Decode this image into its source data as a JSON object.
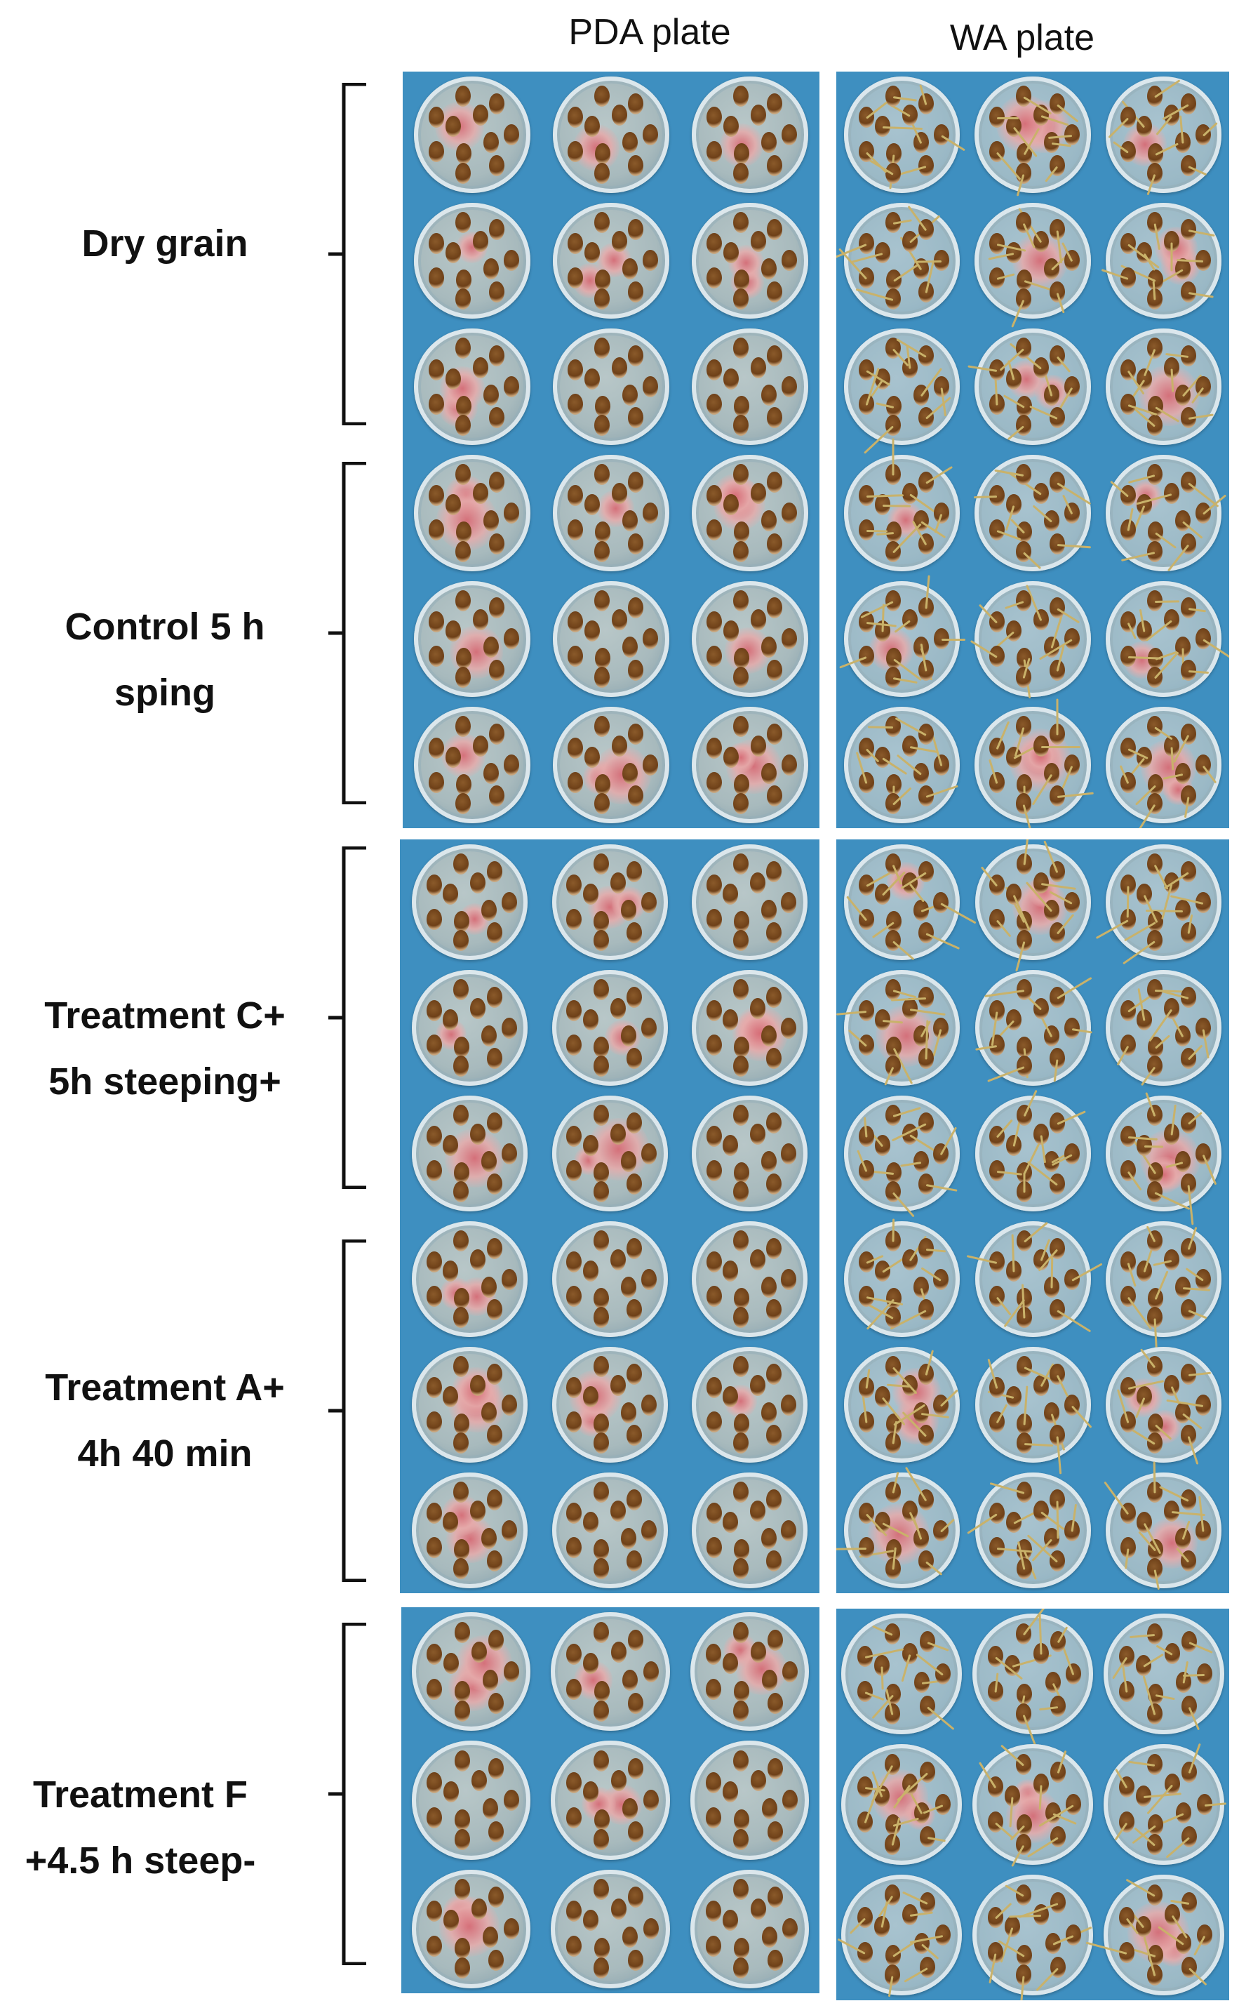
{
  "columns": {
    "pda": "PDA plate",
    "wa": "WA plate"
  },
  "rows": [
    {
      "id": "dry",
      "line1": "Dry grain",
      "line2": ""
    },
    {
      "id": "control",
      "line1": "Control 5 h",
      "line2": "sping"
    },
    {
      "id": "treat-c",
      "line1": "Treatment C+",
      "line2": "5h steeping+"
    },
    {
      "id": "treat-a",
      "line1": "Treatment A+",
      "line2": "4h 40 min"
    },
    {
      "id": "treat-f",
      "line1": "Treatment F",
      "line2": "+4.5 h steep-"
    }
  ],
  "colors": {
    "background_blue": "#3e8fc0",
    "mold_pink": "#d66c76",
    "grain_brown": "#6e4018",
    "sprout_yellow": "#c9b26a"
  }
}
